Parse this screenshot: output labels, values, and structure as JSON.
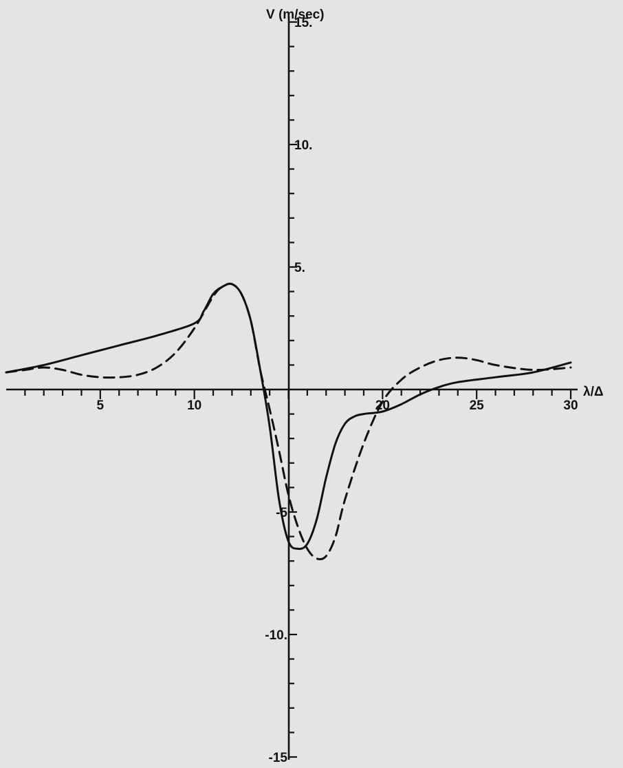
{
  "chart_data": {
    "type": "line",
    "title": "",
    "xlabel": "λ/Δ",
    "ylabel": "V (m/sec)",
    "xlim": [
      0,
      30
    ],
    "ylim": [
      -15,
      15
    ],
    "x_ticks": [
      5,
      10,
      20,
      25,
      30
    ],
    "x_tick_labels": [
      "5",
      "10",
      "20",
      "25",
      "30"
    ],
    "y_ticks": [
      15,
      10,
      5,
      -5,
      -10,
      -15
    ],
    "y_tick_labels": [
      "15.",
      "10.",
      "5.",
      "-5",
      "-10.",
      "-15"
    ],
    "grid": false,
    "legend": "none",
    "series": [
      {
        "style": "solid",
        "color": "#111111",
        "x": [
          0,
          2,
          4,
          6,
          8,
          10,
          10.5,
          11,
          11.5,
          12,
          12.5,
          13,
          13.5,
          14,
          14.5,
          15,
          15.5,
          16,
          16.5,
          17,
          17.5,
          18,
          18.5,
          19,
          20,
          21,
          22,
          23,
          24,
          26,
          28,
          30
        ],
        "y": [
          0.7,
          1.0,
          1.4,
          1.8,
          2.2,
          2.7,
          3.2,
          3.9,
          4.2,
          4.3,
          3.9,
          2.8,
          0.8,
          -1.5,
          -4.5,
          -6.2,
          -6.5,
          -6.3,
          -5.3,
          -3.6,
          -2.2,
          -1.4,
          -1.1,
          -1.0,
          -0.9,
          -0.6,
          -0.2,
          0.1,
          0.3,
          0.5,
          0.7,
          1.1
        ]
      },
      {
        "style": "dashed",
        "color": "#111111",
        "x": [
          0,
          1,
          2,
          3,
          4,
          5,
          6,
          7,
          8,
          9,
          10,
          11,
          11.5,
          12,
          12.5,
          13,
          13.5,
          14,
          14.5,
          15,
          15.5,
          16,
          16.5,
          17,
          17.5,
          18,
          19,
          20,
          21,
          22,
          23,
          24,
          25,
          26,
          28,
          30
        ],
        "y": [
          0.7,
          0.8,
          0.9,
          0.8,
          0.6,
          0.5,
          0.5,
          0.6,
          0.9,
          1.5,
          2.5,
          3.8,
          4.2,
          4.3,
          3.9,
          2.8,
          0.8,
          -0.8,
          -2.5,
          -4.3,
          -5.6,
          -6.5,
          -6.9,
          -6.8,
          -6.0,
          -4.5,
          -2.2,
          -0.5,
          0.4,
          0.9,
          1.2,
          1.3,
          1.2,
          1.0,
          0.8,
          0.9
        ]
      }
    ]
  }
}
